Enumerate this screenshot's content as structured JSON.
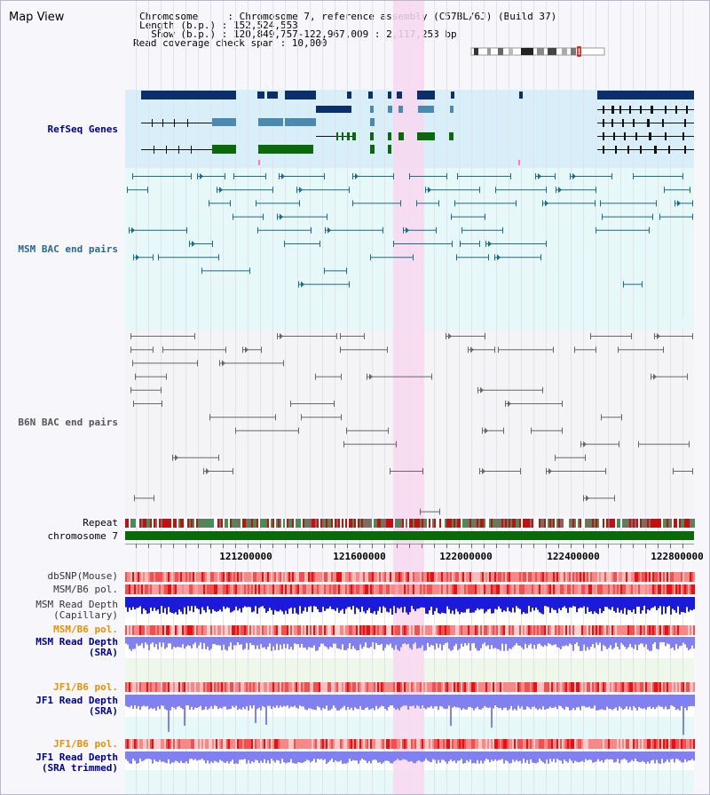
{
  "title": "Map View",
  "info": {
    "line1": "Chromosome     : Chromosome 7, reference assembly (C57BL/6J) (Build 37)",
    "line2": "Length (b.p.) : 152,524,553",
    "line3": "  Show (b.p.) : 120,849,757-122,967,009 : 2,117,253 bp",
    "line4": "Read coverage check span : 10,000"
  },
  "tracks": {
    "refseq": "RefSeq Genes",
    "msm_bac": "MSM BAC end pairs",
    "b6n_bac": "B6N BAC end pairs",
    "repeat": "Repeat",
    "chromosome": "chromosome 7",
    "dbsnp": "dbSNP(Mouse)",
    "msm_b6_pol": "MSM/B6 pol.",
    "msm_depth_cap_1": "MSM Read Depth",
    "msm_depth_cap_2": "(Capillary)",
    "msm_b6_pol2": "MSM/B6 pol.",
    "msm_depth_sra_1": "MSM Read Depth",
    "msm_depth_sra_2": "(SRA)",
    "jf1_b6_pol": "JF1/B6 pol.",
    "jf1_depth_sra_1": "JF1 Read Depth",
    "jf1_depth_sra_2": "(SRA)",
    "jf1_b6_pol2": "JF1/B6 pol.",
    "jf1_depth_trim_1": "JF1 Read Depth",
    "jf1_depth_trim_2": "(SRA trimmed)"
  },
  "axis": {
    "ticks": [
      "121200000",
      "121600000",
      "122000000",
      "122400000",
      "122800000"
    ]
  },
  "colors": {
    "refseq_bg": "#d8eef8",
    "msm_bg": "#e6f8f8",
    "b6n_bg": "#f4f4f6",
    "highlight": "#f8d8f0",
    "gene_dark": "#0a2f6a",
    "gene_blue": "#4a8ab0",
    "gene_green": "#0a6a0a",
    "msm_pair": "#1a6a88",
    "b6n_pair": "#666666",
    "chromosome_bar": "#0a6a0a",
    "capillary_depth": "#1a1ad8",
    "sra_depth": "#8080f0",
    "label_blue": "#00008b",
    "label_teal": "#2a6a8a",
    "label_orange": "#e89000"
  }
}
